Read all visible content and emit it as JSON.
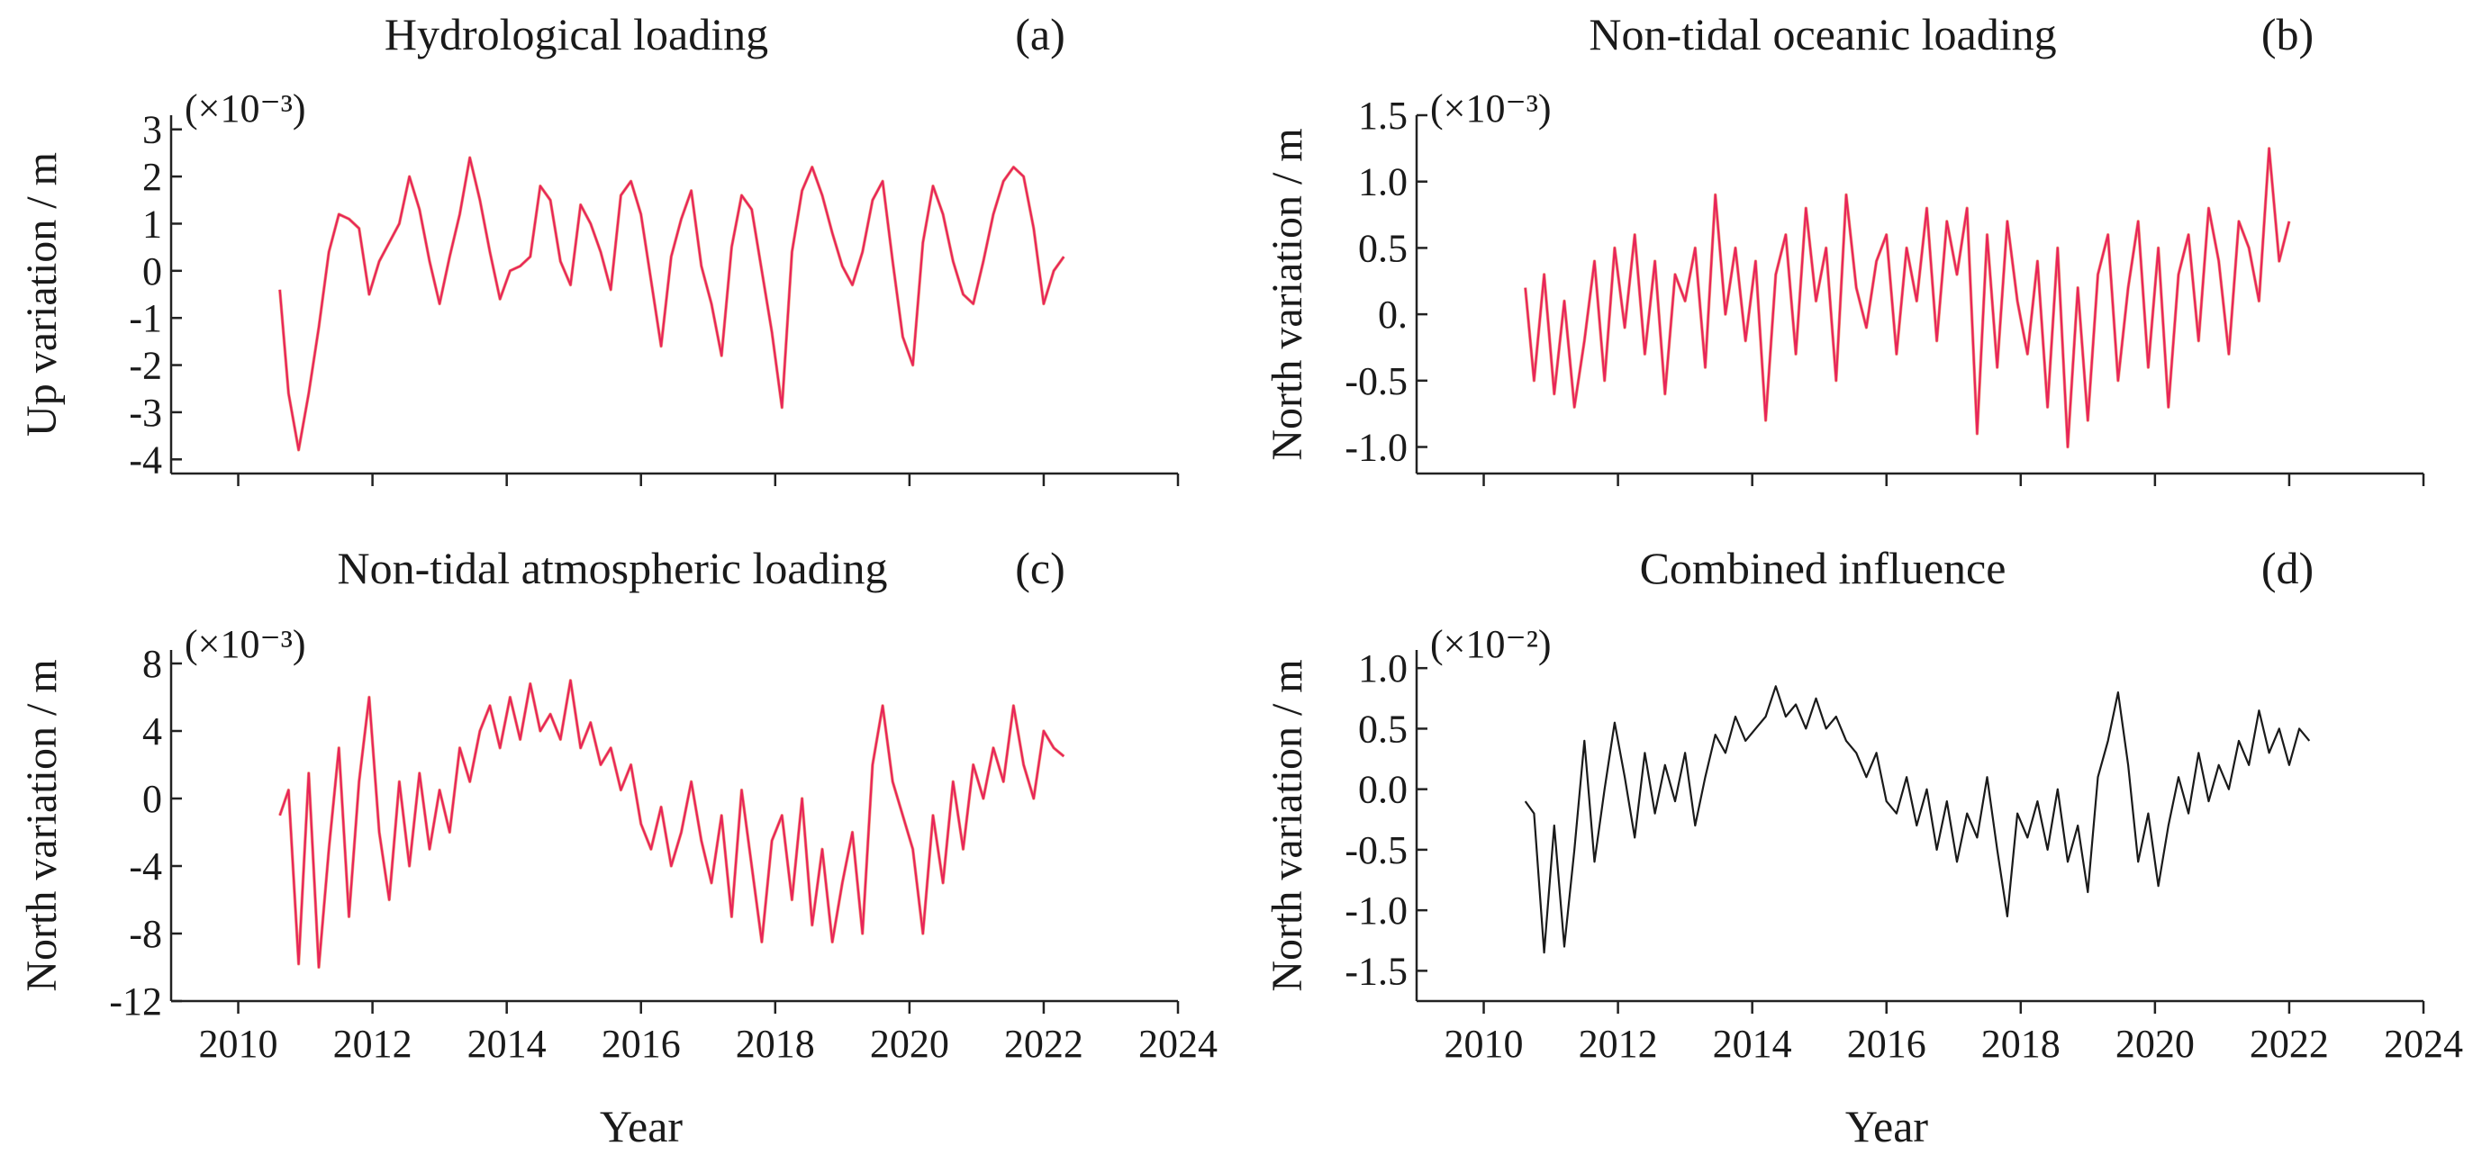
{
  "figure": {
    "xlabel": "Year"
  },
  "chart_data": [
    {
      "id": "a",
      "type": "line",
      "title": "Hydrological loading",
      "panel_label": "(a)",
      "ylabel": "Up variation / m",
      "scale_label": "(×10⁻³)",
      "scale_factor": 0.001,
      "xlim": [
        2009,
        2024
      ],
      "ylim": [
        -4.3,
        3.3
      ],
      "yticks": [
        3,
        2,
        1,
        0,
        -1,
        -2,
        -3,
        -4
      ],
      "ytick_labels": [
        "3",
        "2",
        "1",
        "0",
        "-1",
        "-2",
        "-3",
        "-4"
      ],
      "xticks": [
        2010,
        2012,
        2014,
        2016,
        2018,
        2020,
        2022,
        2024
      ],
      "show_xtick_labels": false,
      "series": [
        {
          "color": "#e8245a",
          "accent_color": "#e8581e",
          "x": [
            2010.62,
            2010.75,
            2010.9,
            2011.05,
            2011.2,
            2011.35,
            2011.5,
            2011.65,
            2011.8,
            2011.95,
            2012.1,
            2012.25,
            2012.4,
            2012.55,
            2012.7,
            2012.85,
            2013.0,
            2013.15,
            2013.3,
            2013.45,
            2013.6,
            2013.75,
            2013.9,
            2014.05,
            2014.2,
            2014.35,
            2014.5,
            2014.65,
            2014.8,
            2014.95,
            2015.1,
            2015.25,
            2015.4,
            2015.55,
            2015.7,
            2015.85,
            2016.0,
            2016.15,
            2016.3,
            2016.45,
            2016.6,
            2016.75,
            2016.9,
            2017.05,
            2017.2,
            2017.35,
            2017.5,
            2017.65,
            2017.8,
            2017.95,
            2018.1,
            2018.25,
            2018.4,
            2018.55,
            2018.7,
            2018.85,
            2019.0,
            2019.15,
            2019.3,
            2019.45,
            2019.6,
            2019.75,
            2019.9,
            2020.05,
            2020.2,
            2020.35,
            2020.5,
            2020.65,
            2020.8,
            2020.95,
            2021.1,
            2021.25,
            2021.4,
            2021.55,
            2021.7,
            2021.85,
            2022.0,
            2022.15,
            2022.3
          ],
          "y": [
            -0.4,
            -2.6,
            -3.8,
            -2.6,
            -1.2,
            0.4,
            1.2,
            1.1,
            0.9,
            -0.5,
            0.2,
            0.6,
            1.0,
            2.0,
            1.3,
            0.2,
            -0.7,
            0.3,
            1.2,
            2.4,
            1.5,
            0.4,
            -0.6,
            0.0,
            0.1,
            0.3,
            1.8,
            1.5,
            0.2,
            -0.3,
            1.4,
            1.0,
            0.4,
            -0.4,
            1.6,
            1.9,
            1.2,
            -0.2,
            -1.6,
            0.3,
            1.1,
            1.7,
            0.1,
            -0.7,
            -1.8,
            0.5,
            1.6,
            1.3,
            0.0,
            -1.3,
            -2.9,
            0.4,
            1.7,
            2.2,
            1.6,
            0.8,
            0.1,
            -0.3,
            0.4,
            1.5,
            1.9,
            0.2,
            -1.4,
            -2.0,
            0.6,
            1.8,
            1.2,
            0.2,
            -0.5,
            -0.7,
            0.2,
            1.2,
            1.9,
            2.2,
            2.0,
            0.9,
            -0.7,
            0.0,
            0.3
          ]
        }
      ]
    },
    {
      "id": "b",
      "type": "line",
      "title": "Non-tidal oceanic loading",
      "panel_label": "(b)",
      "ylabel": "North variation / m",
      "scale_label": "(×10⁻³)",
      "scale_factor": 0.001,
      "xlim": [
        2009,
        2024
      ],
      "ylim": [
        -1.2,
        1.5
      ],
      "yticks": [
        1.5,
        1.0,
        0.5,
        0.0,
        -0.5,
        -1.0
      ],
      "ytick_labels": [
        "1.5",
        "1.0",
        "0.5",
        "0.",
        "-0.5",
        "-1.0"
      ],
      "xticks": [
        2010,
        2012,
        2014,
        2016,
        2018,
        2020,
        2022,
        2024
      ],
      "show_xtick_labels": false,
      "series": [
        {
          "color": "#e8245a",
          "accent_color": "#e8581e",
          "x": [
            2010.62,
            2010.75,
            2010.9,
            2011.05,
            2011.2,
            2011.35,
            2011.5,
            2011.65,
            2011.8,
            2011.95,
            2012.1,
            2012.25,
            2012.4,
            2012.55,
            2012.7,
            2012.85,
            2013.0,
            2013.15,
            2013.3,
            2013.45,
            2013.6,
            2013.75,
            2013.9,
            2014.05,
            2014.2,
            2014.35,
            2014.5,
            2014.65,
            2014.8,
            2014.95,
            2015.1,
            2015.25,
            2015.4,
            2015.55,
            2015.7,
            2015.85,
            2016.0,
            2016.15,
            2016.3,
            2016.45,
            2016.6,
            2016.75,
            2016.9,
            2017.05,
            2017.2,
            2017.35,
            2017.5,
            2017.65,
            2017.8,
            2017.95,
            2018.1,
            2018.25,
            2018.4,
            2018.55,
            2018.7,
            2018.85,
            2019.0,
            2019.15,
            2019.3,
            2019.45,
            2019.6,
            2019.75,
            2019.9,
            2020.05,
            2020.2,
            2020.35,
            2020.5,
            2020.65,
            2020.8,
            2020.95,
            2021.1,
            2021.25,
            2021.4,
            2021.55,
            2021.7,
            2021.85,
            2022.0
          ],
          "y": [
            0.2,
            -0.5,
            0.3,
            -0.6,
            0.1,
            -0.7,
            -0.2,
            0.4,
            -0.5,
            0.5,
            -0.1,
            0.6,
            -0.3,
            0.4,
            -0.6,
            0.3,
            0.1,
            0.5,
            -0.4,
            0.9,
            0.0,
            0.5,
            -0.2,
            0.4,
            -0.8,
            0.3,
            0.6,
            -0.3,
            0.8,
            0.1,
            0.5,
            -0.5,
            0.9,
            0.2,
            -0.1,
            0.4,
            0.6,
            -0.3,
            0.5,
            0.1,
            0.8,
            -0.2,
            0.7,
            0.3,
            0.8,
            -0.9,
            0.6,
            -0.4,
            0.7,
            0.1,
            -0.3,
            0.4,
            -0.7,
            0.5,
            -1.0,
            0.2,
            -0.8,
            0.3,
            0.6,
            -0.5,
            0.2,
            0.7,
            -0.4,
            0.5,
            -0.7,
            0.3,
            0.6,
            -0.2,
            0.8,
            0.4,
            -0.3,
            0.7,
            0.5,
            0.1,
            1.25,
            0.4,
            0.7
          ]
        }
      ]
    },
    {
      "id": "c",
      "type": "line",
      "title": "Non-tidal atmospheric loading",
      "panel_label": "(c)",
      "ylabel": "North variation / m",
      "scale_label": "(×10⁻³)",
      "scale_factor": 0.001,
      "xlim": [
        2009,
        2024
      ],
      "ylim": [
        -12,
        8.8
      ],
      "yticks": [
        8,
        4,
        0,
        -4,
        -8,
        -12
      ],
      "ytick_labels": [
        "8",
        "4",
        "0",
        "-4",
        "-8",
        "-12"
      ],
      "xticks": [
        2010,
        2012,
        2014,
        2016,
        2018,
        2020,
        2022,
        2024
      ],
      "show_xtick_labels": true,
      "series": [
        {
          "color": "#e8245a",
          "accent_color": "#e8581e",
          "x": [
            2010.62,
            2010.75,
            2010.9,
            2011.05,
            2011.2,
            2011.35,
            2011.5,
            2011.65,
            2011.8,
            2011.95,
            2012.1,
            2012.25,
            2012.4,
            2012.55,
            2012.7,
            2012.85,
            2013.0,
            2013.15,
            2013.3,
            2013.45,
            2013.6,
            2013.75,
            2013.9,
            2014.05,
            2014.2,
            2014.35,
            2014.5,
            2014.65,
            2014.8,
            2014.95,
            2015.1,
            2015.25,
            2015.4,
            2015.55,
            2015.7,
            2015.85,
            2016.0,
            2016.15,
            2016.3,
            2016.45,
            2016.6,
            2016.75,
            2016.9,
            2017.05,
            2017.2,
            2017.35,
            2017.5,
            2017.65,
            2017.8,
            2017.95,
            2018.1,
            2018.25,
            2018.4,
            2018.55,
            2018.7,
            2018.85,
            2019.0,
            2019.15,
            2019.3,
            2019.45,
            2019.6,
            2019.75,
            2019.9,
            2020.05,
            2020.2,
            2020.35,
            2020.5,
            2020.65,
            2020.8,
            2020.95,
            2021.1,
            2021.25,
            2021.4,
            2021.55,
            2021.7,
            2021.85,
            2022.0,
            2022.15,
            2022.3
          ],
          "y": [
            -1.0,
            0.5,
            -9.8,
            1.5,
            -10.0,
            -3.0,
            3.0,
            -7.0,
            1.0,
            6.0,
            -2.0,
            -6.0,
            1.0,
            -4.0,
            1.5,
            -3.0,
            0.5,
            -2.0,
            3.0,
            1.0,
            4.0,
            5.5,
            3.0,
            6.0,
            3.5,
            6.8,
            4.0,
            5.0,
            3.5,
            7.0,
            3.0,
            4.5,
            2.0,
            3.0,
            0.5,
            2.0,
            -1.5,
            -3.0,
            -0.5,
            -4.0,
            -2.0,
            1.0,
            -2.5,
            -5.0,
            -1.0,
            -7.0,
            0.5,
            -4.0,
            -8.5,
            -2.5,
            -1.0,
            -6.0,
            0.0,
            -7.5,
            -3.0,
            -8.5,
            -5.0,
            -2.0,
            -8.0,
            2.0,
            5.5,
            1.0,
            -1.0,
            -3.0,
            -8.0,
            -1.0,
            -5.0,
            1.0,
            -3.0,
            2.0,
            0.0,
            3.0,
            1.0,
            5.5,
            2.0,
            0.0,
            4.0,
            3.0,
            2.5
          ]
        }
      ]
    },
    {
      "id": "d",
      "type": "line",
      "title": "Combined influence",
      "panel_label": "(d)",
      "ylabel": "North variation / m",
      "scale_label": "(×10⁻²)",
      "scale_factor": 0.01,
      "xlim": [
        2009,
        2024
      ],
      "ylim": [
        -1.75,
        1.15
      ],
      "yticks": [
        1.0,
        0.5,
        0.0,
        -0.5,
        -1.0,
        -1.5
      ],
      "ytick_labels": [
        "1.0",
        "0.5",
        "0.0",
        "-0.5",
        "-1.0",
        "-1.5"
      ],
      "xticks": [
        2010,
        2012,
        2014,
        2016,
        2018,
        2020,
        2022,
        2024
      ],
      "show_xtick_labels": true,
      "series": [
        {
          "color": "#1a1a1a",
          "x": [
            2010.62,
            2010.75,
            2010.9,
            2011.05,
            2011.2,
            2011.35,
            2011.5,
            2011.65,
            2011.8,
            2011.95,
            2012.1,
            2012.25,
            2012.4,
            2012.55,
            2012.7,
            2012.85,
            2013.0,
            2013.15,
            2013.3,
            2013.45,
            2013.6,
            2013.75,
            2013.9,
            2014.05,
            2014.2,
            2014.35,
            2014.5,
            2014.65,
            2014.8,
            2014.95,
            2015.1,
            2015.25,
            2015.4,
            2015.55,
            2015.7,
            2015.85,
            2016.0,
            2016.15,
            2016.3,
            2016.45,
            2016.6,
            2016.75,
            2016.9,
            2017.05,
            2017.2,
            2017.35,
            2017.5,
            2017.65,
            2017.8,
            2017.95,
            2018.1,
            2018.25,
            2018.4,
            2018.55,
            2018.7,
            2018.85,
            2019.0,
            2019.15,
            2019.3,
            2019.45,
            2019.6,
            2019.75,
            2019.9,
            2020.05,
            2020.2,
            2020.35,
            2020.5,
            2020.65,
            2020.8,
            2020.95,
            2021.1,
            2021.25,
            2021.4,
            2021.55,
            2021.7,
            2021.85,
            2022.0,
            2022.15,
            2022.3
          ],
          "y": [
            -0.1,
            -0.2,
            -1.35,
            -0.3,
            -1.3,
            -0.5,
            0.4,
            -0.6,
            0.0,
            0.55,
            0.1,
            -0.4,
            0.3,
            -0.2,
            0.2,
            -0.1,
            0.3,
            -0.3,
            0.1,
            0.45,
            0.3,
            0.6,
            0.4,
            0.5,
            0.6,
            0.85,
            0.6,
            0.7,
            0.5,
            0.75,
            0.5,
            0.6,
            0.4,
            0.3,
            0.1,
            0.3,
            -0.1,
            -0.2,
            0.1,
            -0.3,
            0.0,
            -0.5,
            -0.1,
            -0.6,
            -0.2,
            -0.4,
            0.1,
            -0.5,
            -1.05,
            -0.2,
            -0.4,
            -0.1,
            -0.5,
            0.0,
            -0.6,
            -0.3,
            -0.85,
            0.1,
            0.4,
            0.8,
            0.2,
            -0.6,
            -0.2,
            -0.8,
            -0.3,
            0.1,
            -0.2,
            0.3,
            -0.1,
            0.2,
            0.0,
            0.4,
            0.2,
            0.65,
            0.3,
            0.5,
            0.2,
            0.5,
            0.4
          ]
        }
      ]
    }
  ]
}
